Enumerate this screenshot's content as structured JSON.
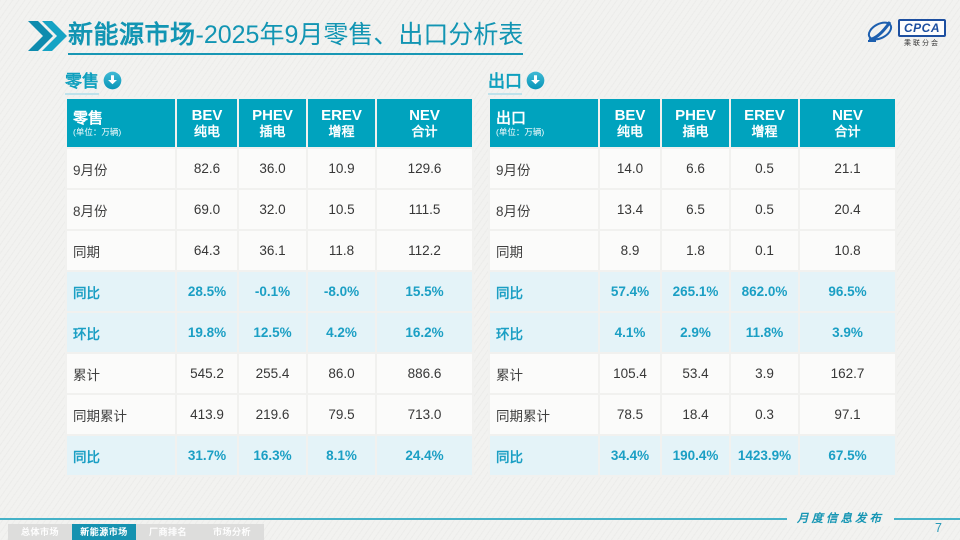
{
  "page": {
    "title_bold": "新能源市场",
    "title_rest": "-2025年9月零售、出口分析表",
    "footer_note": "月度信息发布",
    "page_number": "7"
  },
  "logo": {
    "name": "CPCA",
    "sub": "乘联分会"
  },
  "tabs": [
    {
      "label": "总体市场",
      "active": false
    },
    {
      "label": "新能源市场",
      "active": true
    },
    {
      "label": "厂商排名",
      "active": false
    },
    {
      "label": "市场分析",
      "active": false
    }
  ],
  "colors": {
    "accent_teal": "#1295B3",
    "table_header_bg": "#00A3BE",
    "pct_row_bg": "#E4F3F8",
    "pct_text": "#1B9FC4",
    "active_tab_bg": "#1692B0",
    "logo_blue": "#1D4FA0"
  },
  "tables": [
    {
      "section": "零售",
      "unit": "(单位：万辆)",
      "columns": [
        {
          "en": "BEV",
          "cn": "纯电"
        },
        {
          "en": "PHEV",
          "cn": "插电"
        },
        {
          "en": "EREV",
          "cn": "增程"
        },
        {
          "en": "NEV",
          "cn": "合计"
        }
      ],
      "rows": [
        {
          "label": "9月份",
          "type": "data",
          "values": [
            "82.6",
            "36.0",
            "10.9",
            "129.6"
          ]
        },
        {
          "label": "8月份",
          "type": "data",
          "values": [
            "69.0",
            "32.0",
            "10.5",
            "111.5"
          ]
        },
        {
          "label": "同期",
          "type": "data",
          "values": [
            "64.3",
            "36.1",
            "11.8",
            "112.2"
          ]
        },
        {
          "label": "同比",
          "type": "pct",
          "values": [
            "28.5%",
            "-0.1%",
            "-8.0%",
            "15.5%"
          ]
        },
        {
          "label": "环比",
          "type": "pct",
          "values": [
            "19.8%",
            "12.5%",
            "4.2%",
            "16.2%"
          ]
        },
        {
          "label": "累计",
          "type": "data",
          "values": [
            "545.2",
            "255.4",
            "86.0",
            "886.6"
          ]
        },
        {
          "label": "同期累计",
          "type": "data",
          "values": [
            "413.9",
            "219.6",
            "79.5",
            "713.0"
          ]
        },
        {
          "label": "同比",
          "type": "pct",
          "values": [
            "31.7%",
            "16.3%",
            "8.1%",
            "24.4%"
          ]
        }
      ]
    },
    {
      "section": "出口",
      "unit": "(单位：万辆)",
      "columns": [
        {
          "en": "BEV",
          "cn": "纯电"
        },
        {
          "en": "PHEV",
          "cn": "插电"
        },
        {
          "en": "EREV",
          "cn": "增程"
        },
        {
          "en": "NEV",
          "cn": "合计"
        }
      ],
      "rows": [
        {
          "label": "9月份",
          "type": "data",
          "values": [
            "14.0",
            "6.6",
            "0.5",
            "21.1"
          ]
        },
        {
          "label": "8月份",
          "type": "data",
          "values": [
            "13.4",
            "6.5",
            "0.5",
            "20.4"
          ]
        },
        {
          "label": "同期",
          "type": "data",
          "values": [
            "8.9",
            "1.8",
            "0.1",
            "10.8"
          ]
        },
        {
          "label": "同比",
          "type": "pct",
          "values": [
            "57.4%",
            "265.1%",
            "862.0%",
            "96.5%"
          ]
        },
        {
          "label": "环比",
          "type": "pct",
          "values": [
            "4.1%",
            "2.9%",
            "11.8%",
            "3.9%"
          ]
        },
        {
          "label": "累计",
          "type": "data",
          "values": [
            "105.4",
            "53.4",
            "3.9",
            "162.7"
          ]
        },
        {
          "label": "同期累计",
          "type": "data",
          "values": [
            "78.5",
            "18.4",
            "0.3",
            "97.1"
          ]
        },
        {
          "label": "同比",
          "type": "pct",
          "values": [
            "34.4%",
            "190.4%",
            "1423.9%",
            "67.5%"
          ]
        }
      ]
    }
  ]
}
